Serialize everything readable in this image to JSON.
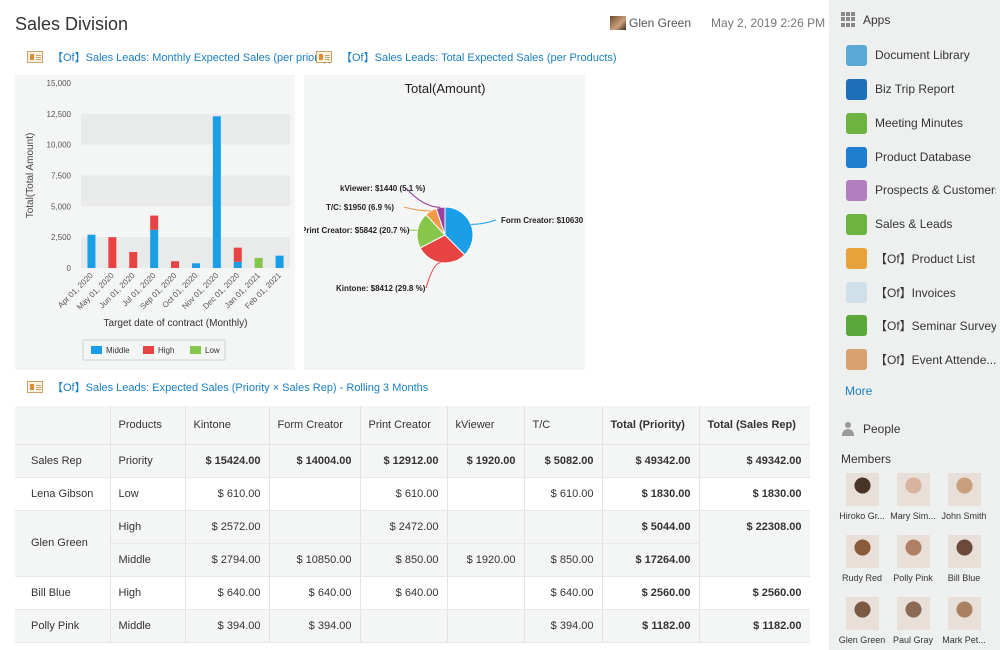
{
  "header": {
    "title": "Sales Division",
    "user_name": "Glen Green",
    "date": "May 2, 2019 2:26 PM"
  },
  "reports": {
    "bar_link": "【Of】Sales Leads: Monthly Expected Sales (per priority)",
    "pie_link": "【Of】Sales Leads: Total Expected Sales (per Products)",
    "table_link": "【Of】Sales Leads: Expected Sales (Priority × Sales Rep) - Rolling 3 Months"
  },
  "chart_data": [
    {
      "type": "bar",
      "stacked": true,
      "ylabel": "Total(Total Amount)",
      "xlabel": "Target date of contract (Monthly)",
      "ylim": [
        0,
        15000
      ],
      "yticks": [
        "15,000",
        "12,500",
        "10,000",
        "7,500",
        "5,000",
        "2,500",
        "0"
      ],
      "categories": [
        "Apr 01, 2020",
        "May 01, 2020",
        "Jun 01, 2020",
        "Jul 01, 2020",
        "Sep 01, 2020",
        "Oct 01, 2020",
        "Nov 01, 2020",
        "Dec 01, 2020",
        "Jan 01, 2021",
        "Feb 01, 2021"
      ],
      "legend_position": "bottom",
      "series": [
        {
          "name": "Middle",
          "color": "#1a9ee8",
          "values": [
            2700,
            0,
            0,
            3100,
            0,
            380,
            12300,
            500,
            0,
            1000
          ]
        },
        {
          "name": "High",
          "color": "#e84343",
          "values": [
            0,
            2500,
            1300,
            1150,
            550,
            0,
            0,
            1150,
            0,
            0
          ]
        },
        {
          "name": "Low",
          "color": "#86c64a",
          "values": [
            0,
            0,
            0,
            0,
            0,
            0,
            0,
            0,
            820,
            0
          ]
        }
      ]
    },
    {
      "type": "pie",
      "title": "Total(Amount)",
      "slices": [
        {
          "label": "Form Creator: $10630",
          "value": 10630,
          "color": "#1a9ee8"
        },
        {
          "label": "Kintone: $8412 (29.8 %)",
          "value": 8412,
          "color": "#e84343"
        },
        {
          "label": "Print Creator: $5842 (20.7 %)",
          "value": 5842,
          "color": "#86c64a"
        },
        {
          "label": "T/C: $1950 (6.9 %)",
          "value": 1950,
          "color": "#f2994a"
        },
        {
          "label": "kViewer: $1440 (5.1 %)",
          "value": 1440,
          "color": "#9b3fa3"
        }
      ]
    }
  ],
  "table": {
    "headers": [
      "",
      "Products",
      "Kintone",
      "Form Creator",
      "Print Creator",
      "kViewer",
      "T/C",
      "Total (Priority)",
      "Total (Sales Rep)"
    ],
    "rows": [
      [
        "Sales Rep",
        "Priority",
        "$ 15424.00",
        "$ 14004.00",
        "$ 12912.00",
        "$ 1920.00",
        "$ 5082.00",
        "$ 49342.00",
        "$ 49342.00"
      ],
      [
        "Lena Gibson",
        "Low",
        "$ 610.00",
        "",
        "$ 610.00",
        "",
        "$ 610.00",
        "$ 1830.00",
        "$ 1830.00"
      ],
      [
        "Glen Green",
        "High",
        "$ 2572.00",
        "",
        "$ 2472.00",
        "",
        "",
        "$ 5044.00",
        "$ 22308.00"
      ],
      [
        "",
        "Middle",
        "$ 2794.00",
        "$ 10850.00",
        "$ 850.00",
        "$ 1920.00",
        "$ 850.00",
        "$ 17264.00",
        ""
      ],
      [
        "Bill Blue",
        "High",
        "$ 640.00",
        "$ 640.00",
        "$ 640.00",
        "",
        "$ 640.00",
        "$ 2560.00",
        "$ 2560.00"
      ],
      [
        "Polly Pink",
        "Middle",
        "$ 394.00",
        "$ 394.00",
        "",
        "",
        "$ 394.00",
        "$ 1182.00",
        "$ 1182.00"
      ]
    ]
  },
  "sidebar": {
    "apps_label": "Apps",
    "apps": [
      {
        "label": "Document Library",
        "icon": "document-library-icon",
        "color": "#5aa8d6"
      },
      {
        "label": "Biz Trip Report",
        "icon": "biz-trip-icon",
        "color": "#1e6fb8"
      },
      {
        "label": "Meeting Minutes",
        "icon": "pushpin-icon",
        "color": "#6cb33f"
      },
      {
        "label": "Product Database",
        "icon": "lock-icon",
        "color": "#1e7fd0"
      },
      {
        "label": "Prospects & Customers",
        "icon": "lightbulb-icon",
        "color": "#b17fc0"
      },
      {
        "label": "Sales & Leads",
        "icon": "handshake-icon",
        "color": "#6cb33f"
      },
      {
        "label": "【Of】Product List",
        "icon": "product-list-icon",
        "color": "#e8a23a"
      },
      {
        "label": "【Of】Invoices",
        "icon": "invoice-icon",
        "color": "#cfe0ea"
      },
      {
        "label": "【Of】Seminar Survey",
        "icon": "pencil-icon",
        "color": "#5aa83a"
      },
      {
        "label": "【Of】Event Attende...",
        "icon": "attendee-icon",
        "color": "#d9a070"
      }
    ],
    "more_label": "More",
    "people_label": "People",
    "members_label": "Members",
    "members": [
      {
        "name": "Hiroko Gr...",
        "tone": "#4a3428"
      },
      {
        "name": "Mary Sim...",
        "tone": "#d8b3a0"
      },
      {
        "name": "John Smith",
        "tone": "#c9a07e"
      },
      {
        "name": "Rudy Red",
        "tone": "#8a5a3a"
      },
      {
        "name": "Polly Pink",
        "tone": "#b07f66"
      },
      {
        "name": "Bill Blue",
        "tone": "#6b4a3a"
      },
      {
        "name": "Glen Green",
        "tone": "#7a5a44"
      },
      {
        "name": "Paul Gray",
        "tone": "#8a6a55"
      },
      {
        "name": "Mark Pet...",
        "tone": "#a98060"
      }
    ]
  }
}
